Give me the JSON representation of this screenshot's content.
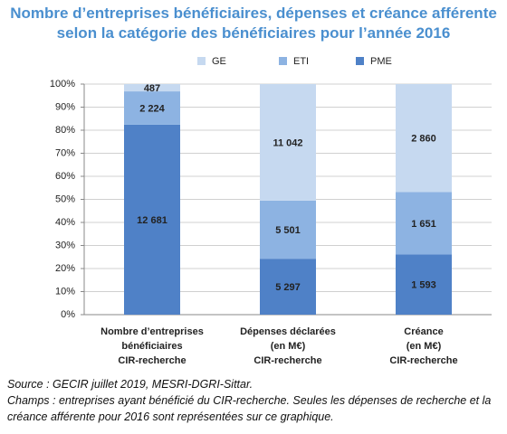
{
  "chart_data": {
    "type": "bar",
    "stacking": "percent",
    "title": "Nombre d’entreprises bénéficiaires, dépenses et créance afférente\nselon la catégorie des bénéficiaires pour l’année 2016",
    "categories": [
      [
        "Nombre d’entreprises",
        "bénéficiaires",
        "CIR-recherche"
      ],
      [
        "Dépenses déclarées",
        "(en M€)",
        "CIR-recherche"
      ],
      [
        "Créance",
        "(en M€)",
        "CIR-recherche"
      ]
    ],
    "series": [
      {
        "name": "GE",
        "color": "#c6d9f0",
        "values": [
          487,
          11042,
          2860
        ],
        "value_labels": [
          "487",
          "11 042",
          "2 860"
        ]
      },
      {
        "name": "ETI",
        "color": "#8db3e2",
        "values": [
          2224,
          5501,
          1651
        ],
        "value_labels": [
          "2 224",
          "5 501",
          "1 651"
        ]
      },
      {
        "name": "PME",
        "color": "#4f81c7",
        "values": [
          12681,
          5297,
          1593
        ],
        "value_labels": [
          "12 681",
          "5 297",
          "1 593"
        ]
      }
    ],
    "ylim": [
      0,
      100
    ],
    "yticks": [
      {
        "value": 0,
        "label": "0%"
      },
      {
        "value": 10,
        "label": "10%"
      },
      {
        "value": 20,
        "label": "20%"
      },
      {
        "value": 30,
        "label": "30%"
      },
      {
        "value": 40,
        "label": "40%"
      },
      {
        "value": 50,
        "label": "50%"
      },
      {
        "value": 60,
        "label": "60%"
      },
      {
        "value": 70,
        "label": "70%"
      },
      {
        "value": 80,
        "label": "80%"
      },
      {
        "value": 90,
        "label": "90%"
      },
      {
        "value": 100,
        "label": "100%"
      }
    ],
    "grid": true,
    "legend": "top",
    "notes": [
      "Source : GECIR juillet 2019, MESRI-DGRI-Sittar.",
      "Champs : entreprises ayant bénéficié du CIR-recherche. Seules les dépenses de recherche et la créance afférente pour 2016 sont représentées sur ce graphique."
    ]
  }
}
